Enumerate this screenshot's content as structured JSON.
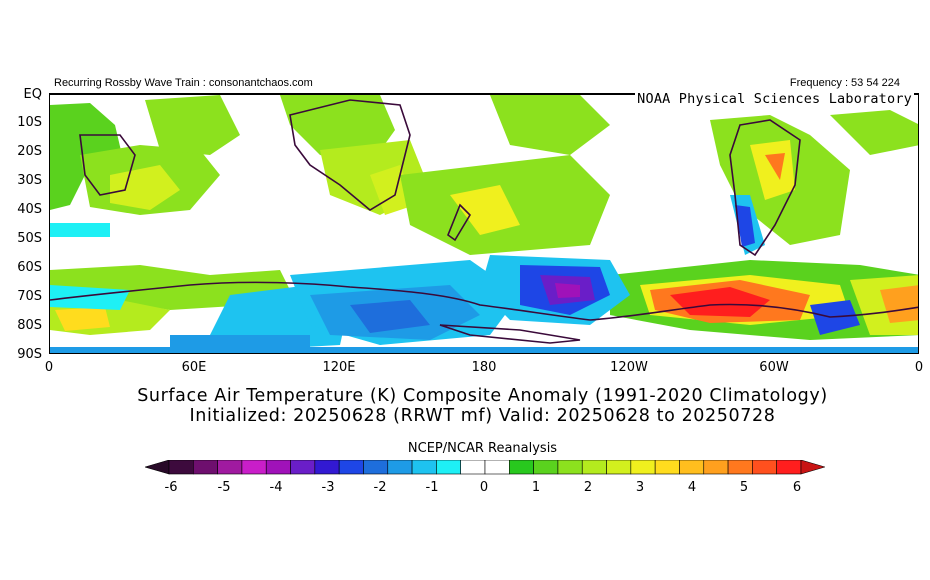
{
  "header": {
    "left": "Recurring Rossby Wave Train : consonantchaos.com",
    "right": "Frequency : 53 54 224"
  },
  "lab_label": "NOAA Physical Sciences Laboratory",
  "lat_labels": [
    "EQ",
    "10S",
    "20S",
    "30S",
    "40S",
    "50S",
    "60S",
    "70S",
    "80S",
    "90S"
  ],
  "lon_labels": [
    "0",
    "60E",
    "120E",
    "180",
    "120W",
    "60W",
    "0"
  ],
  "title": {
    "line1": "Surface Air Temperature (K) Composite Anomaly (1991-2020 Climatology)",
    "line2": "Initialized: 20250628 (RRWT mf) Valid: 20250628 to 20250728"
  },
  "colorbar": {
    "title": "NCEP/NCAR Reanalysis",
    "ticks": [
      "-6",
      "-5",
      "-4",
      "-3",
      "-2",
      "-1",
      "0",
      "1",
      "2",
      "3",
      "4",
      "5",
      "6"
    ],
    "colors": [
      "#3d0a3d",
      "#6e0f6e",
      "#a01aa0",
      "#c91ec9",
      "#a012b9",
      "#6a1ec8",
      "#3219d2",
      "#1e46e6",
      "#1e6edc",
      "#1e9be6",
      "#1ec3f0",
      "#1ef0f5",
      "#ffffff",
      "#ffffff",
      "#28c81e",
      "#5ad21e",
      "#8ce11e",
      "#b4eb1e",
      "#d2f01e",
      "#f0f01e",
      "#ffdc1e",
      "#ffbe1e",
      "#ffa01e",
      "#ff781e",
      "#ff501e",
      "#ff1e1e"
    ],
    "low_arrow": "#280a28",
    "high_arrow": "#c81414"
  }
}
